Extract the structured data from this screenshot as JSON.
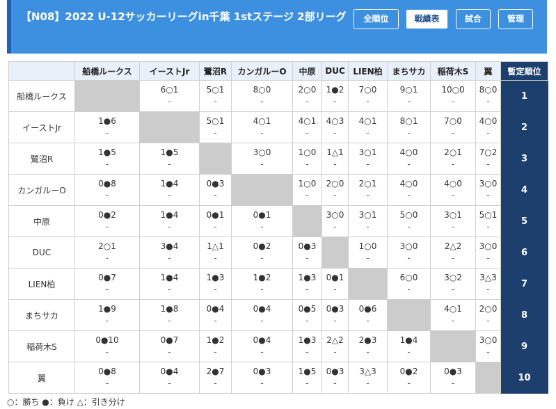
{
  "header": {
    "title": "【N08】2022 U-12サッカーリーグin千葉 1stステージ 2部リーグ",
    "buttons": [
      "全順位",
      "戦績表",
      "試合",
      "管理"
    ],
    "active_button": 1
  },
  "table": {
    "rank_header": "暫定順位",
    "teams": [
      "船橋ルークス",
      "イーストJr",
      "鷺沼R",
      "カンガルーO",
      "中原",
      "DUC",
      "LIEN柏",
      "まちサカ",
      "稲荷木S",
      "翼"
    ],
    "row_labels": [
      "船橋ルークス",
      "イーストJr",
      "鷺沼R",
      "カンガルーO",
      "中原",
      "DUC",
      "LIEN柏",
      "まちサカ",
      "稲荷木S",
      "翼"
    ],
    "ranks": [
      "1",
      "2",
      "3",
      "4",
      "5",
      "6",
      "7",
      "8",
      "9",
      "10"
    ],
    "sub": "-",
    "results": [
      [
        "",
        "6○1",
        "5○1",
        "8○0",
        "2○0",
        "1●2",
        "7○0",
        "9○1",
        "10○0",
        "8○0"
      ],
      [
        "1●6",
        "",
        "5○1",
        "4○1",
        "4○1",
        "4○3",
        "4○1",
        "8○1",
        "7○0",
        "4○0"
      ],
      [
        "1●5",
        "1●5",
        "",
        "3○0",
        "1○0",
        "1△1",
        "3○1",
        "4○0",
        "2○1",
        "7○2"
      ],
      [
        "0●8",
        "1●4",
        "0●3",
        "",
        "1○0",
        "2○0",
        "2○1",
        "4○0",
        "4○0",
        "3○0"
      ],
      [
        "0●2",
        "1●4",
        "0●1",
        "0●1",
        "",
        "3○0",
        "3○1",
        "5○0",
        "3○1",
        "5○1"
      ],
      [
        "2○1",
        "3●4",
        "1△1",
        "0●2",
        "0●3",
        "",
        "1○0",
        "3○0",
        "2△2",
        "3○0"
      ],
      [
        "0●7",
        "1●4",
        "1●3",
        "1●2",
        "1●3",
        "0●1",
        "",
        "6○0",
        "3○2",
        "3△3"
      ],
      [
        "1●9",
        "1●8",
        "0●4",
        "0●4",
        "0●5",
        "0●3",
        "0●6",
        "",
        "4○1",
        "2○0"
      ],
      [
        "0●10",
        "0●7",
        "1●2",
        "0●4",
        "1●3",
        "2△2",
        "2●3",
        "1●4",
        "",
        "3○0"
      ],
      [
        "0●8",
        "0●4",
        "2●7",
        "0●3",
        "1●5",
        "0●3",
        "3△3",
        "0●2",
        "0●3",
        ""
      ]
    ]
  },
  "legend": "○：勝ち ●：負け △：引き分け",
  "colors": {
    "header_bg": "#3d8fe0",
    "header_accent": "#1e63b5",
    "rank_bg": "#1d3f6e",
    "self_cell": "#cccccc",
    "col_header_bg": "#e8f0fa"
  }
}
